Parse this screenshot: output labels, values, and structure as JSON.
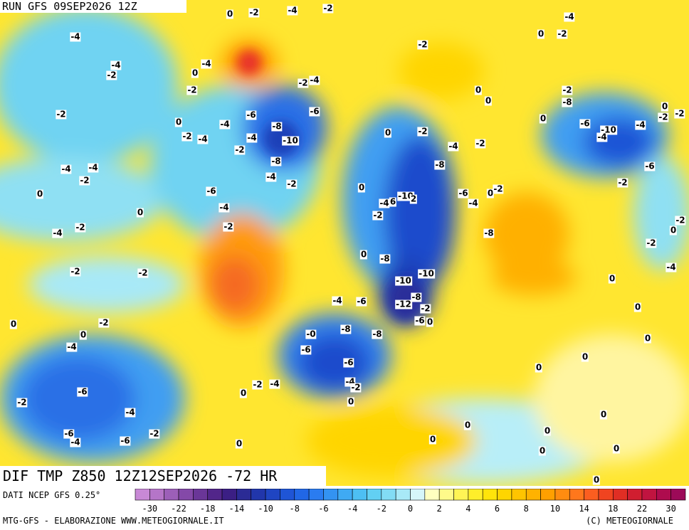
{
  "header": {
    "run": "RUN GFS 09SEP2026 12Z",
    "title": "DIF TMP Z850 12Z12SEP2026 -72 HR"
  },
  "footer": {
    "source": "DATI NCEP GFS 0.25°",
    "credit": "MTG-GFS - ELABORAZIONE WWW.METEOGIORNALE.IT",
    "copyright": "(C) METEOGIORNALE"
  },
  "colorbar": {
    "ticks": [
      -30,
      -22,
      -18,
      -14,
      -10,
      -8,
      -6,
      -4,
      -2,
      0,
      2,
      4,
      6,
      8,
      10,
      14,
      18,
      22,
      30
    ],
    "colors": [
      "#c889d6",
      "#b575c8",
      "#9c5fb8",
      "#8449a8",
      "#6a3698",
      "#52268a",
      "#3b1f84",
      "#2b2b95",
      "#2136ab",
      "#1f45c2",
      "#1f55d6",
      "#2167e6",
      "#2a7cf0",
      "#3393f2",
      "#3faaf3",
      "#4dbff3",
      "#62d0f3",
      "#82dcf4",
      "#a8e9f7",
      "#d6f6fa",
      "#ffffc0",
      "#fffa8a",
      "#fff455",
      "#ffee2a",
      "#ffe40a",
      "#ffd500",
      "#ffc400",
      "#ffb200",
      "#ffa000",
      "#ff8c10",
      "#ff771c",
      "#fb5e20",
      "#f04420",
      "#e02e24",
      "#d01e30",
      "#c01440",
      "#ae0c4e",
      "#9c0a58"
    ]
  },
  "contour_labels": [
    "0",
    "-2",
    "-4",
    "-2",
    "-4",
    "-4",
    "0",
    "-2",
    "-2",
    "-4",
    "-4",
    "-2",
    "0",
    "-2",
    "-4",
    "-2",
    "0",
    "-2",
    "0",
    "-8",
    "-2",
    "-6",
    "-6",
    "-2",
    "-2",
    "0",
    "0",
    "-4",
    "-8",
    "0",
    "-6",
    "-10",
    "-4",
    "-2",
    "-4",
    "-4",
    "-10",
    "0",
    "-2",
    "-4",
    "-2",
    "-4",
    "-2",
    "-8",
    "-4",
    "-4",
    "-2",
    "-8",
    "-6",
    "-4",
    "-2",
    "0",
    "-6",
    "0",
    "-2",
    "-2",
    "0",
    "-6",
    "-4",
    "6",
    "-10",
    "2",
    "-4",
    "-4",
    "0",
    "-2",
    "-2",
    "-4",
    "-2",
    "-2",
    "0",
    "-8",
    "-2",
    "0",
    "-8",
    "-2",
    "-2",
    "-4",
    "-10",
    "-10",
    "0",
    "-4",
    "-6",
    "-8",
    "-12",
    "-2",
    "0",
    "0",
    "-2",
    "-6",
    "0",
    "-8",
    "-0",
    "0",
    "-8",
    "0",
    "-4",
    "-6",
    "-6",
    "0",
    "0",
    "-2",
    "-4",
    "-4",
    "-2",
    "-6",
    "0",
    "-2",
    "0",
    "-4",
    "0",
    "0",
    "-6",
    "-4",
    "-2",
    "0",
    "-6",
    "0",
    "0",
    "0",
    "0",
    "0"
  ]
}
